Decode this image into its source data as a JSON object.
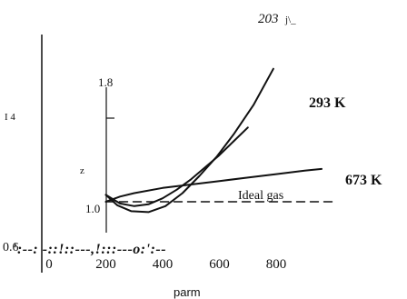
{
  "page": {
    "page_number": "203",
    "page_mark": "j\\_"
  },
  "chart_data": {
    "type": "line",
    "xlabel": "parm",
    "ylabel": "z",
    "xlim": [
      0,
      1000
    ],
    "ylim": [
      0.6,
      2.0
    ],
    "x_ticks": [
      "0",
      "200",
      "400",
      "600",
      "800"
    ],
    "x_tick_values": [
      0,
      200,
      400,
      600,
      800
    ],
    "y_tick_labels": [
      {
        "text": "0.6",
        "value": 0.6
      },
      {
        "text": "1.0",
        "value": 1.0
      },
      {
        "text": "I 4",
        "value": 1.4
      },
      {
        "text": "1.8",
        "value": 1.8
      }
    ],
    "baseline_garble": "':--: -::!::---,!:::---o:':--",
    "series": [
      {
        "name": "293 K",
        "color": "#111111",
        "style": "solid",
        "x": [
          200,
          250,
          300,
          350,
          400,
          450,
          500,
          550,
          600,
          650,
          700
        ],
        "y": [
          1.04,
          0.99,
          0.975,
          0.985,
          1.02,
          1.07,
          1.13,
          1.2,
          1.27,
          1.35,
          1.43
        ]
      },
      {
        "name": "673 K",
        "color": "#111111",
        "style": "solid",
        "x": [
          200,
          250,
          300,
          400,
          500,
          600,
          700,
          800,
          900,
          960
        ],
        "y": [
          1.0,
          1.03,
          1.05,
          1.08,
          1.1,
          1.12,
          1.14,
          1.16,
          1.18,
          1.19
        ]
      },
      {
        "name": "",
        "color": "#111111",
        "style": "solid",
        "x": [
          200,
          240,
          290,
          350,
          410,
          470,
          530,
          590,
          650,
          720,
          790
        ],
        "y": [
          1.04,
          0.98,
          0.945,
          0.94,
          0.975,
          1.05,
          1.15,
          1.26,
          1.39,
          1.56,
          1.77
        ]
      },
      {
        "name": "Ideal gas",
        "color": "#111111",
        "style": "dashed",
        "x": [
          200,
          1000
        ],
        "y": [
          1.0,
          1.0
        ]
      }
    ]
  }
}
